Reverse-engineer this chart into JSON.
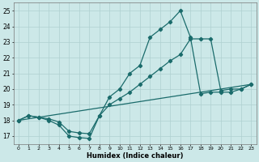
{
  "title": "",
  "xlabel": "Humidex (Indice chaleur)",
  "xlim": [
    -0.5,
    23.5
  ],
  "ylim": [
    16.5,
    25.5
  ],
  "xticks": [
    0,
    1,
    2,
    3,
    4,
    5,
    6,
    7,
    8,
    9,
    10,
    11,
    12,
    13,
    14,
    15,
    16,
    17,
    18,
    19,
    20,
    21,
    22,
    23
  ],
  "yticks": [
    17,
    18,
    19,
    20,
    21,
    22,
    23,
    24,
    25
  ],
  "bg_color": "#cce8e8",
  "grid_color": "#afd0d0",
  "line_color": "#1a6b6b",
  "line1_x": [
    0,
    1,
    2,
    3,
    4,
    5,
    6,
    7,
    8,
    9,
    10,
    11,
    12,
    13,
    14,
    15,
    16,
    17,
    18,
    19,
    20,
    21,
    22,
    23
  ],
  "line1_y": [
    18.0,
    18.3,
    18.2,
    18.0,
    17.7,
    17.0,
    16.9,
    16.85,
    18.3,
    19.0,
    19.4,
    19.8,
    20.3,
    20.8,
    21.3,
    21.8,
    22.2,
    23.2,
    23.2,
    23.2,
    19.9,
    20.0,
    20.0,
    20.3
  ],
  "line2_x": [
    0,
    1,
    2,
    3,
    4,
    5,
    6,
    7,
    8,
    9,
    10,
    11,
    12,
    13,
    14,
    15,
    16,
    17,
    18,
    19,
    20,
    21,
    22,
    23
  ],
  "line2_y": [
    18.0,
    18.3,
    18.2,
    18.1,
    17.9,
    17.3,
    17.2,
    17.15,
    18.3,
    19.5,
    20.0,
    21.0,
    21.5,
    23.3,
    23.8,
    24.3,
    25.0,
    23.3,
    19.7,
    19.8,
    19.8,
    19.8,
    20.0,
    20.3
  ],
  "line3_x": [
    0,
    23
  ],
  "line3_y": [
    18.0,
    20.3
  ]
}
